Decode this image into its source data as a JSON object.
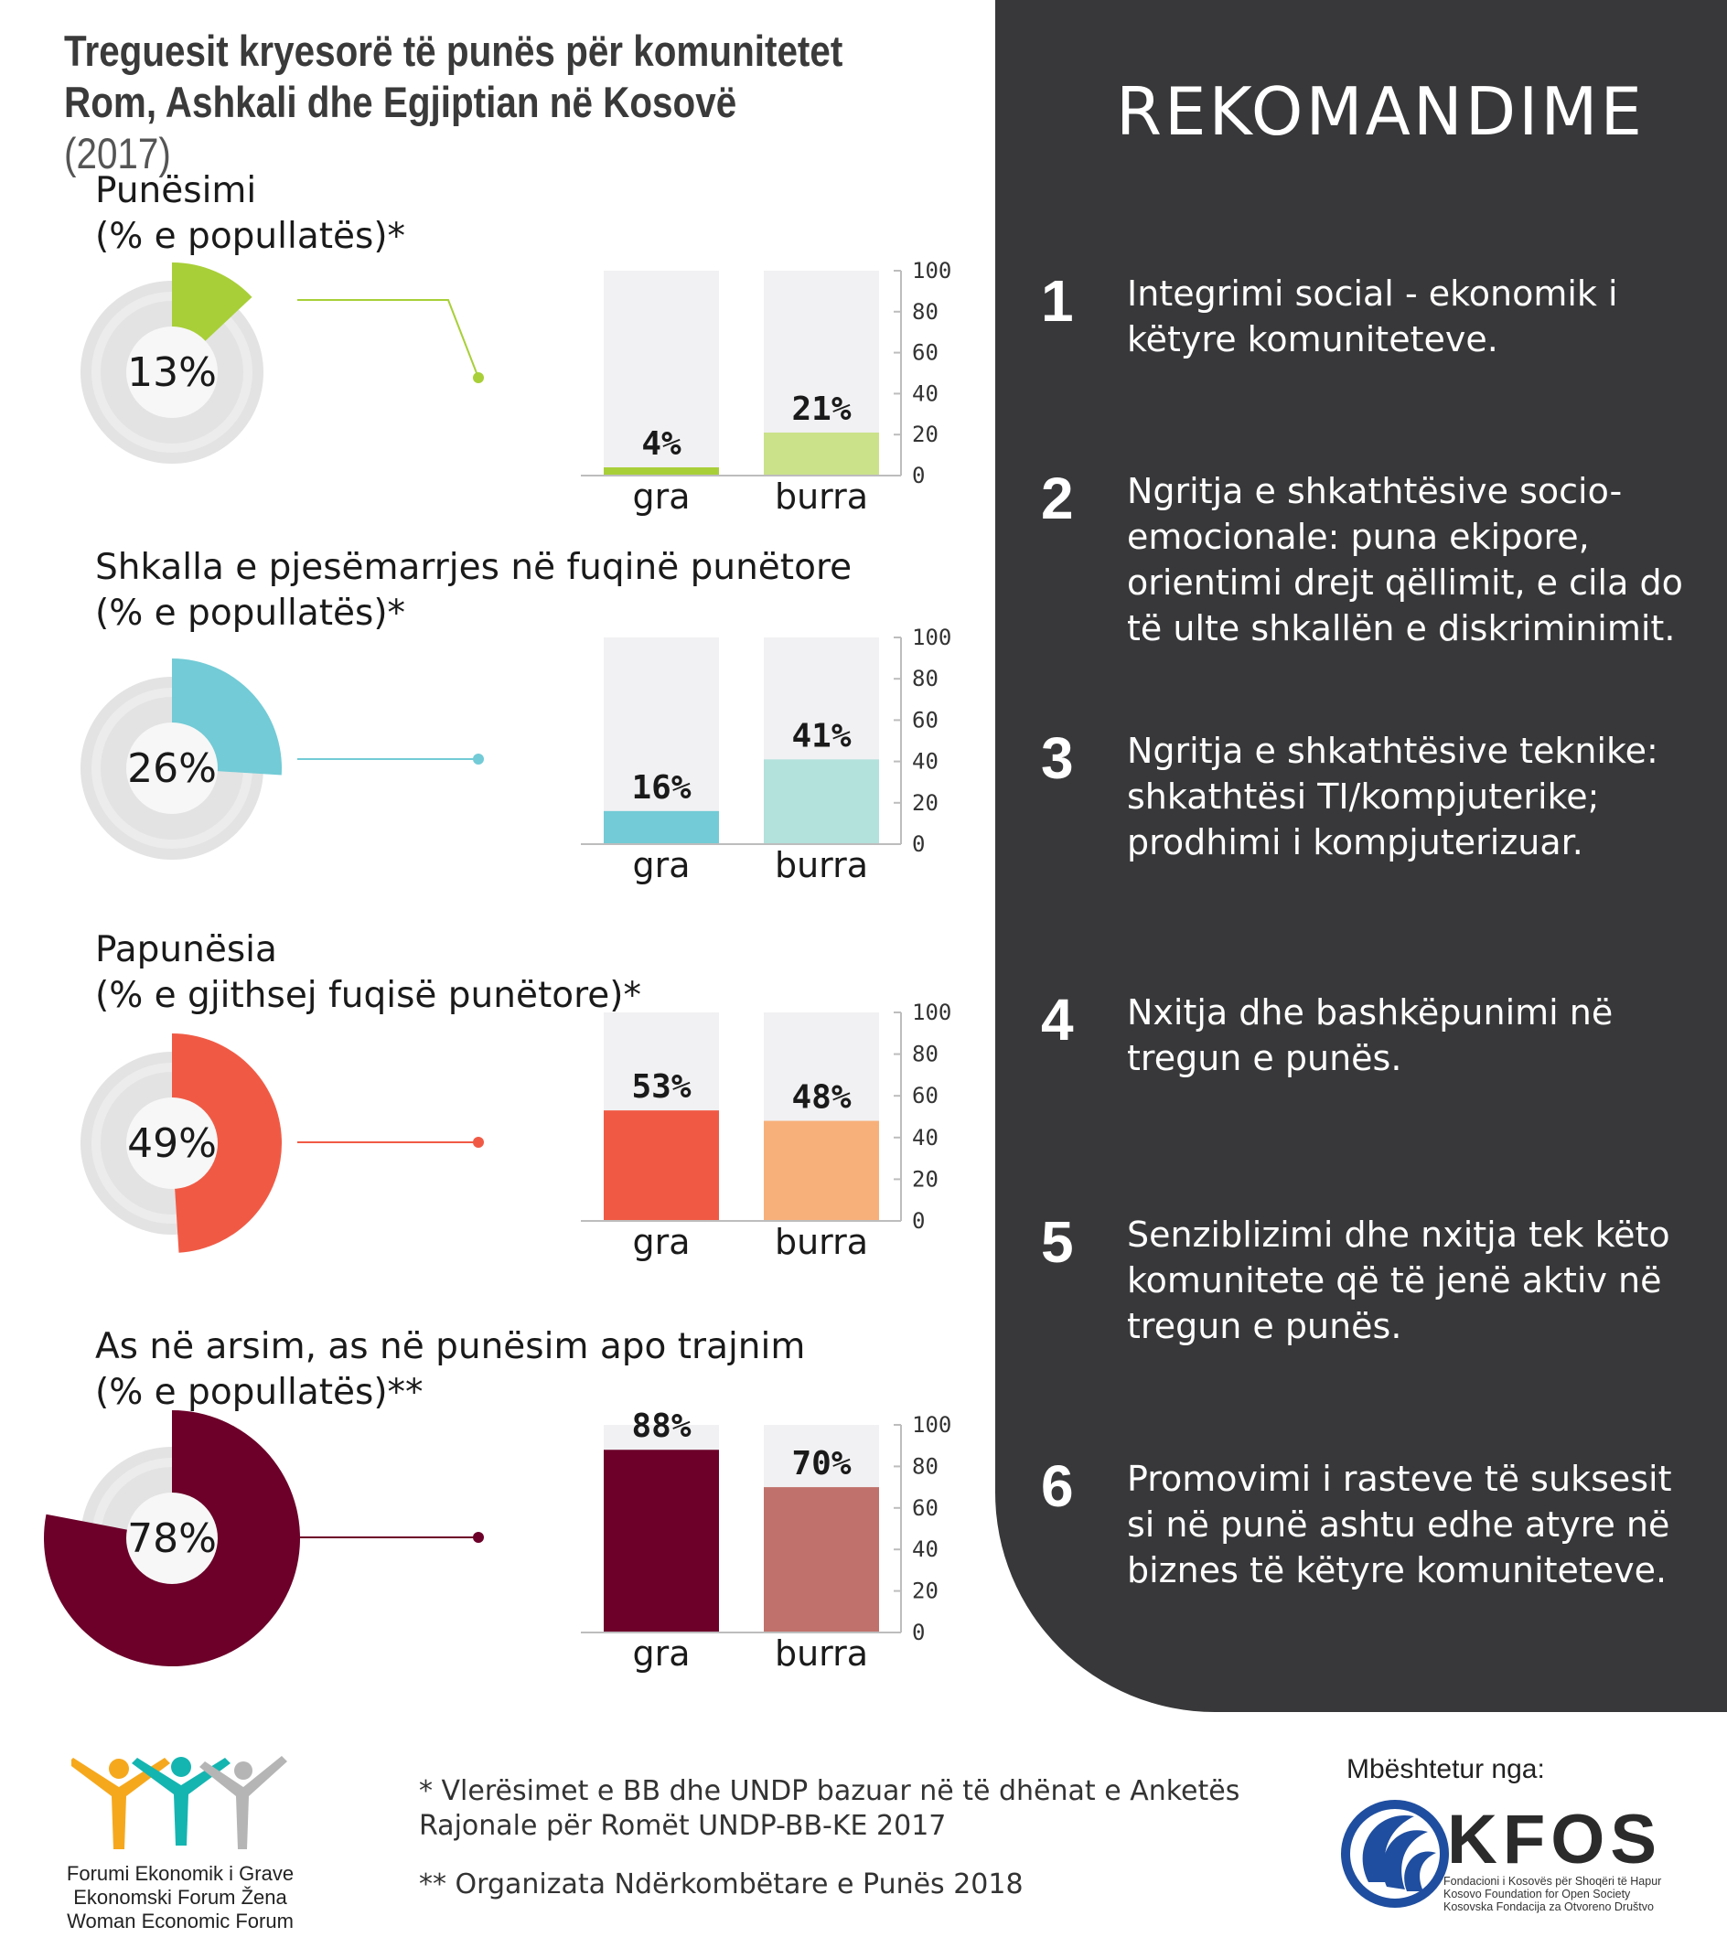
{
  "title": {
    "main": "Treguesit kryesorë të punës për komunitetet Rom, Ashkali dhe Egjiptian në Kosovë",
    "year": "(2017)"
  },
  "chart_data": [
    {
      "type": "bar",
      "title": "Punësimi",
      "subtitle": "(% e popullatës)*",
      "total_pct": 13,
      "total_label": "13%",
      "categories": [
        "gra",
        "burra"
      ],
      "values": [
        4,
        21
      ],
      "value_labels": [
        "4%",
        "21%"
      ],
      "ylim": [
        0,
        100
      ],
      "yticks": [
        "100",
        "80",
        "60",
        "40",
        "20",
        "0"
      ],
      "colors": {
        "total": "#a8cf38",
        "gra": "#a8cf38",
        "burra": "#cbe28a"
      }
    },
    {
      "type": "bar",
      "title": "Shkalla e pjesëmarrjes në fuqinë punëtore",
      "subtitle": "(% e popullatës)*",
      "total_pct": 26,
      "total_label": "26%",
      "categories": [
        "gra",
        "burra"
      ],
      "values": [
        16,
        41
      ],
      "value_labels": [
        "16%",
        "41%"
      ],
      "ylim": [
        0,
        100
      ],
      "yticks": [
        "100",
        "80",
        "60",
        "40",
        "20",
        "0"
      ],
      "colors": {
        "total": "#72cbd6",
        "gra": "#72cbd6",
        "burra": "#b3e1db"
      }
    },
    {
      "type": "bar",
      "title": "Papunësia",
      "subtitle": "(% e gjithsej fuqisë punëtore)*",
      "total_pct": 49,
      "total_label": "49%",
      "categories": [
        "gra",
        "burra"
      ],
      "values": [
        53,
        48
      ],
      "value_labels": [
        "53%",
        "48%"
      ],
      "ylim": [
        0,
        100
      ],
      "yticks": [
        "100",
        "80",
        "60",
        "40",
        "20",
        "0"
      ],
      "colors": {
        "total": "#f05a45",
        "gra": "#f05a45",
        "burra": "#f8b07a"
      }
    },
    {
      "type": "bar",
      "title": "As në arsim, as në punësim apo trajnim",
      "subtitle": "(% e popullatës)**",
      "total_pct": 78,
      "total_label": "78%",
      "categories": [
        "gra",
        "burra"
      ],
      "values": [
        88,
        70
      ],
      "value_labels": [
        "88%",
        "70%"
      ],
      "ylim": [
        0,
        100
      ],
      "yticks": [
        "100",
        "80",
        "60",
        "40",
        "20",
        "0"
      ],
      "colors": {
        "total": "#6c0029",
        "gra": "#6c0029",
        "burra": "#c0716c"
      }
    }
  ],
  "recommendations": {
    "heading": "REKOMANDIME",
    "items": [
      {
        "num": "1",
        "text": "Integrimi social - ekonomik i këtyre komuniteteve."
      },
      {
        "num": "2",
        "text": "Ngritja e shkathtësive socio-emocionale: puna ekipore, orientimi drejt qëllimit, e cila do të ulte shkallën e diskriminimit."
      },
      {
        "num": "3",
        "text": "Ngritja e shkathtësive teknike: shkathtësi TI/kompjuterike; prodhimi i kompjuterizuar."
      },
      {
        "num": "4",
        "text": "Nxitja dhe bashkëpunimi në tregun e punës."
      },
      {
        "num": "5",
        "text": "Senziblizimi dhe nxitja tek këto komunitete që të jenë aktiv në tregun e punës."
      },
      {
        "num": "6",
        "text": "Promovimi i rasteve të suksesit si në punë ashtu edhe atyre në biznes të këtyre komuniteteve."
      }
    ]
  },
  "footnotes": {
    "note1": "* Vlerësimet e BB dhe UNDP bazuar në të dhënat e Anketës Rajonale për Romët UNDP-BB-KE 2017",
    "note2": "** Organizata Ndërkombëtare e Punës 2018"
  },
  "logo_left": {
    "line1": "Forumi Ekonomik i Grave",
    "line2": "Ekonomski Forum Žena",
    "line3": "Woman Economic Forum",
    "colors": [
      "#f6a81c",
      "#14b5b1",
      "#b5b5b5"
    ]
  },
  "logo_right": {
    "supported_by": "Mbështetur nga:",
    "name": "KFOS",
    "sub1": "Fondacioni i Kosovës për Shoqëri të Hapur",
    "sub2": "Kosovo Foundation for Open Society",
    "sub3": "Kosovska Fondacija za Otvoreno Društvo",
    "color": "#1f4ea0"
  }
}
